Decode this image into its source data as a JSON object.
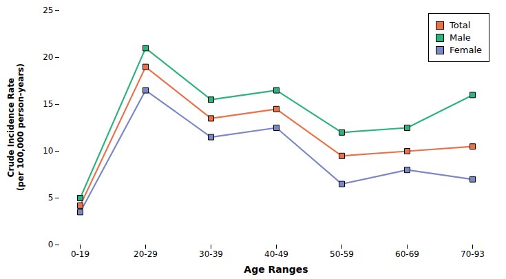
{
  "chart_data": {
    "type": "line",
    "categories": [
      "0-19",
      "20-29",
      "30-39",
      "40-49",
      "50-59",
      "60-69",
      "70-93"
    ],
    "series": [
      {
        "name": "Total",
        "color": "#E8724A",
        "values": [
          4.2,
          19.0,
          13.5,
          14.5,
          9.5,
          10.0,
          10.5
        ]
      },
      {
        "name": "Male",
        "color": "#2DB37D",
        "values": [
          5.0,
          21.0,
          15.5,
          16.5,
          12.0,
          12.5,
          16.0
        ]
      },
      {
        "name": "Female",
        "color": "#7B88C6",
        "values": [
          3.5,
          16.5,
          11.5,
          12.5,
          6.5,
          8.0,
          7.0
        ]
      }
    ],
    "xlabel": "Age Ranges",
    "ylabel": "Crude Incidence Rate\n(per 100,000 person-years)",
    "ylim": [
      0,
      25
    ],
    "yticks": [
      0,
      5,
      10,
      15,
      20,
      25
    ],
    "marker": "square",
    "legend": "upper right",
    "grid": false
  }
}
